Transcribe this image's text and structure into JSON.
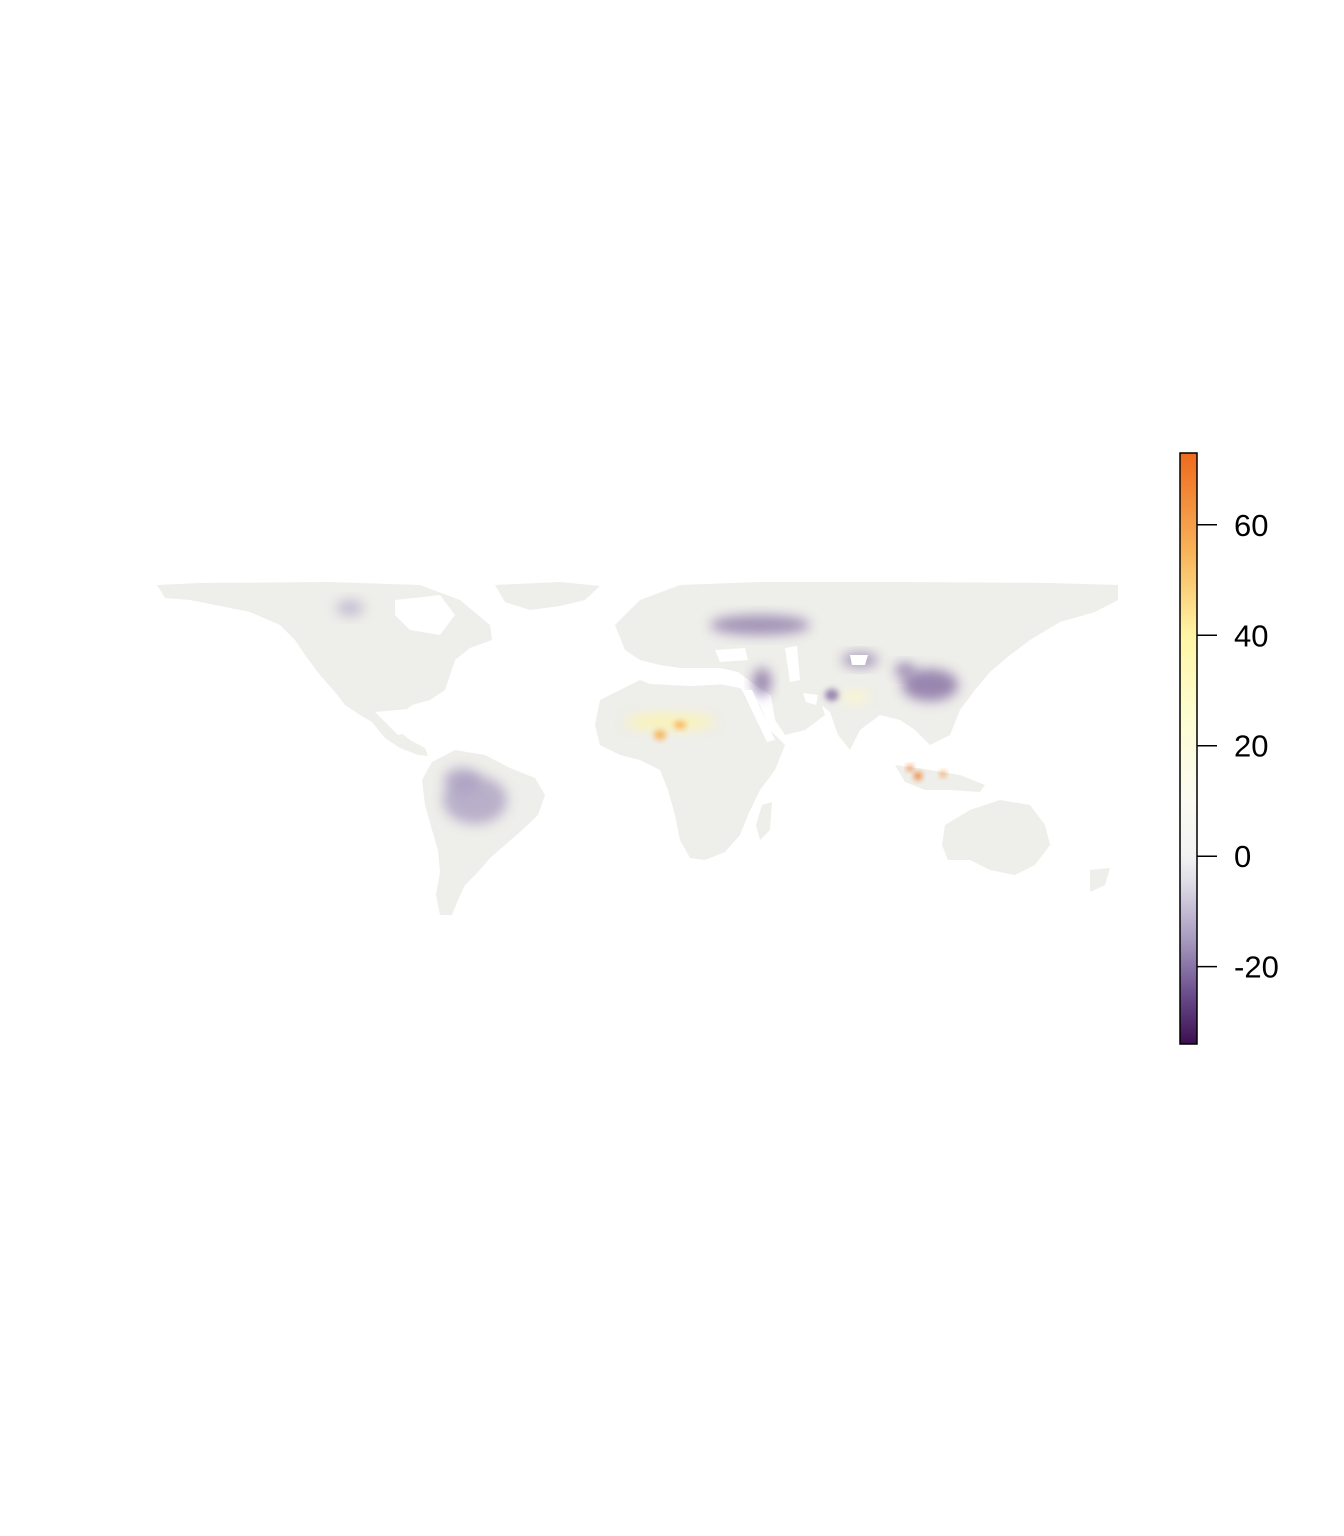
{
  "map": {
    "type": "raster-world-map",
    "projection": "equirectangular",
    "ocean_color": "#ffffff",
    "land_base_color": "#eeeeea",
    "features": [
      {
        "name": "central-north-america-negative",
        "value": -12
      },
      {
        "name": "amazon-basin-negative",
        "value": -15
      },
      {
        "name": "black-sea-caspian-negative",
        "value": -22
      },
      {
        "name": "central-asia-negative",
        "value": -20
      },
      {
        "name": "eastern-china-negative",
        "value": -22
      },
      {
        "name": "sahel-positive",
        "value": 40
      },
      {
        "name": "west-africa-hotspot",
        "value": 55
      },
      {
        "name": "sumatra-java-hotspot",
        "value": 70
      },
      {
        "name": "borneo-hotspot",
        "value": 62
      },
      {
        "name": "arabia-positive",
        "value": 30
      }
    ]
  },
  "legend": {
    "min": -34,
    "max": 73,
    "ticks": [
      {
        "value": 60,
        "label": "60"
      },
      {
        "value": 40,
        "label": "40"
      },
      {
        "value": 20,
        "label": "20"
      },
      {
        "value": 0,
        "label": "0"
      },
      {
        "value": -20,
        "label": "-20"
      }
    ],
    "colors": [
      {
        "value": -34,
        "color": "#3b0f4f"
      },
      {
        "value": -25,
        "color": "#6a4d8c"
      },
      {
        "value": -15,
        "color": "#a89bc0"
      },
      {
        "value": -5,
        "color": "#dedbe6"
      },
      {
        "value": 0,
        "color": "#f2f2f2"
      },
      {
        "value": 10,
        "color": "#fbfbf3"
      },
      {
        "value": 25,
        "color": "#fdfdd2"
      },
      {
        "value": 40,
        "color": "#fff5a5"
      },
      {
        "value": 55,
        "color": "#f8b45a"
      },
      {
        "value": 73,
        "color": "#ef6a1d"
      }
    ]
  }
}
